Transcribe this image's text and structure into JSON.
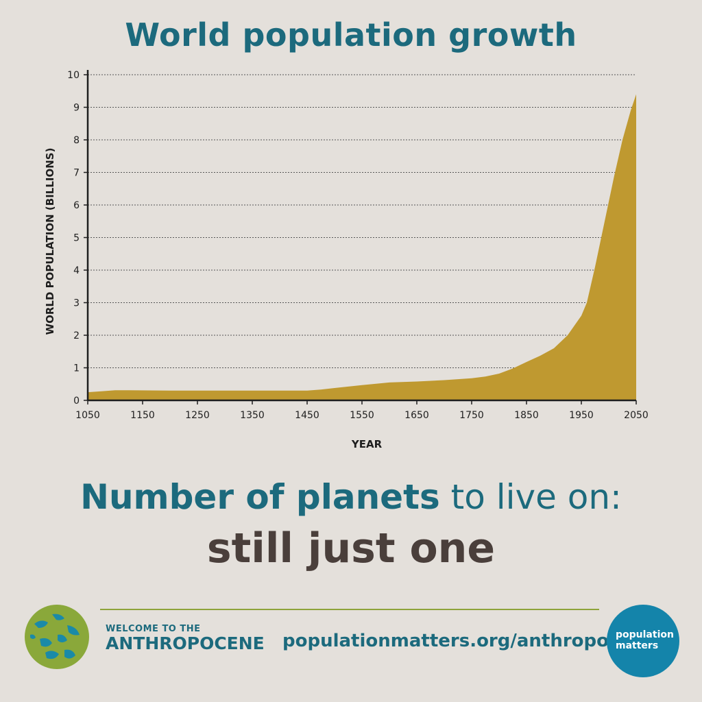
{
  "chart_data": {
    "type": "area",
    "title": "World population growth",
    "xlabel": "YEAR",
    "ylabel": "WORLD POPULATION (BILLIONS)",
    "xlim": [
      1050,
      2050
    ],
    "ylim": [
      0,
      10
    ],
    "x_ticks": [
      "1050",
      "1150",
      "1250",
      "1350",
      "1450",
      "1550",
      "1650",
      "1750",
      "1850",
      "1950",
      "2050"
    ],
    "y_ticks": [
      "0",
      "1",
      "2",
      "3",
      "4",
      "5",
      "6",
      "7",
      "8",
      "9",
      "10"
    ],
    "grid": true,
    "fill_color": "#bf9930",
    "x": [
      1050,
      1075,
      1100,
      1125,
      1200,
      1300,
      1400,
      1450,
      1475,
      1500,
      1550,
      1600,
      1650,
      1700,
      1750,
      1775,
      1800,
      1825,
      1850,
      1875,
      1900,
      1925,
      1950,
      1960,
      1975,
      1990,
      2000,
      2010,
      2025,
      2040,
      2050
    ],
    "values": [
      0.25,
      0.28,
      0.31,
      0.31,
      0.3,
      0.3,
      0.3,
      0.3,
      0.33,
      0.38,
      0.47,
      0.55,
      0.58,
      0.62,
      0.68,
      0.73,
      0.82,
      0.98,
      1.18,
      1.37,
      1.6,
      2.0,
      2.6,
      3.0,
      4.1,
      5.3,
      6.1,
      6.9,
      8.0,
      8.9,
      9.4
    ]
  },
  "headline": {
    "bold_part": "Number of planets",
    "rest": " to live on:"
  },
  "subline": "still just one",
  "footer": {
    "welcome": "WELCOME TO THE",
    "anthropocene": "ANTHROPOCENE",
    "url": "populationmatters.org/anthropocene",
    "logo_text": "population\nmatters"
  },
  "colors": {
    "background": "#e4e0db",
    "accent": "#1c6a7d",
    "area": "#bf9930",
    "logo_blue": "#1484aa",
    "rule_green": "#8ea33a"
  }
}
